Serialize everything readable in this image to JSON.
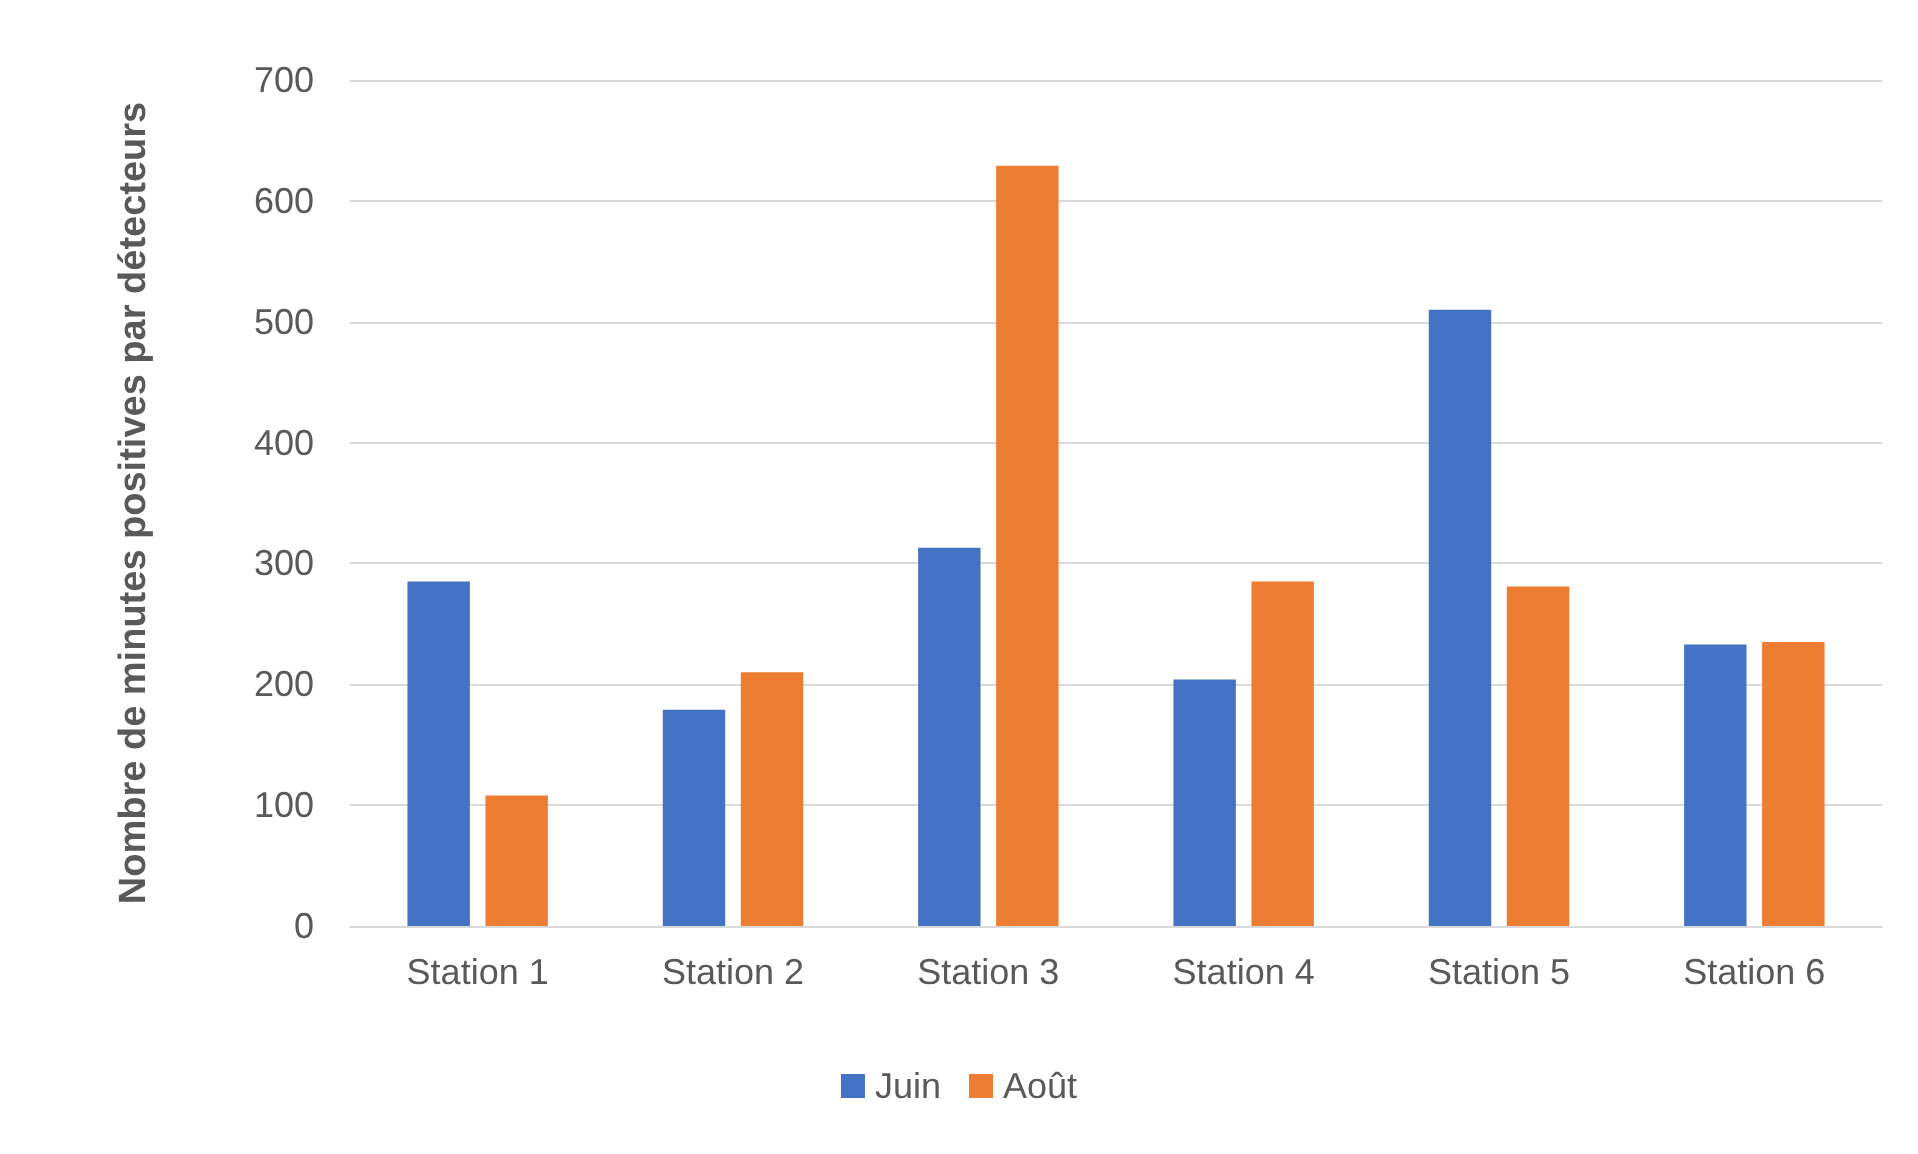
{
  "chart_data": {
    "type": "bar",
    "ylabel": "Nombre de minutes positives par détecteurs",
    "categories": [
      "Station 1",
      "Station 2",
      "Station 3",
      "Station 4",
      "Station 5",
      "Station 6"
    ],
    "series": [
      {
        "name": "Juin",
        "color": "#4472c4",
        "values": [
          285,
          179,
          313,
          204,
          510,
          233
        ]
      },
      {
        "name": "Août",
        "color": "#ed7d31",
        "values": [
          108,
          210,
          629,
          285,
          281,
          235
        ]
      }
    ],
    "ylim": [
      0,
      700
    ],
    "yticks": [
      0,
      100,
      200,
      300,
      400,
      500,
      600,
      700
    ],
    "grid": "y",
    "legend": "bottom"
  }
}
